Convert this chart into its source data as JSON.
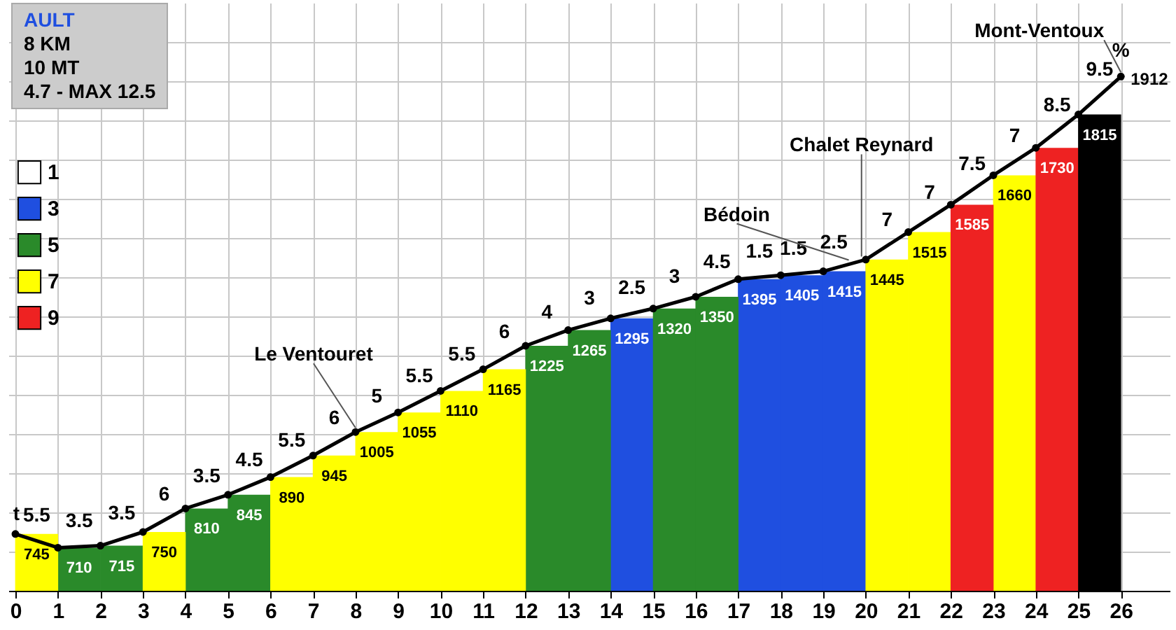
{
  "chart_data": {
    "type": "bar",
    "xlim": [
      0,
      27
    ],
    "xticks": [
      0,
      1,
      2,
      3,
      4,
      5,
      6,
      7,
      8,
      9,
      10,
      11,
      12,
      13,
      14,
      15,
      16,
      17,
      18,
      19,
      20,
      21,
      22,
      23,
      24,
      25,
      26
    ],
    "ylim": [
      600,
      2100
    ],
    "yticks": [
      {
        "value": 700,
        "label": null
      },
      {
        "value": 800,
        "label": null
      },
      {
        "value": 900,
        "label": null
      },
      {
        "value": 1000,
        "label": null
      },
      {
        "value": 1100,
        "label": null
      },
      {
        "value": 1200,
        "label": null
      },
      {
        "value": 1300,
        "label": null
      },
      {
        "value": 1400,
        "label": null
      },
      {
        "value": 1500,
        "label": null
      },
      {
        "value": 1600,
        "label": null
      },
      {
        "value": 1700,
        "label": null
      },
      {
        "value": 1800,
        "label": null
      },
      {
        "value": 1900,
        "label": null
      },
      {
        "value": 2000,
        "label": null
      }
    ],
    "tick_labels": "x",
    "grid": true,
    "legend": "top left",
    "marker": "circle",
    "line_style": "solid",
    "series": [
      {
        "name": "1",
        "color": "#ffffff"
      },
      {
        "name": "3",
        "color": "#1f4fe0",
        "x": [
          14.5,
          17.5,
          18.5,
          19.5
        ],
        "values": [
          1295,
          1395,
          1405,
          1415
        ],
        "value_labels": [
          "1295",
          "1395",
          "1405",
          "1415"
        ]
      },
      {
        "name": "5",
        "color": "#2a8a2a",
        "x": [
          1.5,
          2.5,
          4.5,
          5.5,
          12.5,
          13.5,
          15.5,
          16.5
        ],
        "values": [
          710,
          715,
          810,
          845,
          1225,
          1265,
          1320,
          1350
        ],
        "value_labels": [
          "710",
          "715",
          "810",
          "845",
          "1225",
          "1265",
          "1320",
          "1350"
        ]
      },
      {
        "name": "7",
        "color": "#ffff00",
        "x": [
          0.5,
          3.5,
          6.5,
          7.5,
          8.5,
          9.5,
          10.5,
          11.5,
          20.5,
          21.5,
          23.5
        ],
        "values": [
          745,
          750,
          890,
          945,
          1005,
          1055,
          1110,
          1165,
          1445,
          1515,
          1660
        ],
        "value_labels": [
          "745",
          "750",
          "890",
          "945",
          "1005",
          "1055",
          "1110",
          "1165",
          "1445",
          "1515",
          "1660"
        ]
      },
      {
        "name": "9",
        "color": "#ee2222",
        "x": [
          22.5,
          24.5
        ],
        "values": [
          1585,
          1730
        ],
        "value_labels": [
          "1585",
          "1730"
        ]
      },
      {
        "color": "#000000",
        "x": [
          25.5
        ],
        "values": [
          1815
        ],
        "value_labels": [
          "1815"
        ]
      },
      {
        "type": "line",
        "color": "#000000",
        "x": [
          0,
          1,
          2,
          3,
          4,
          5,
          6,
          7,
          8,
          9,
          10,
          11,
          12,
          13,
          14,
          15,
          16,
          17,
          18,
          19,
          20,
          21,
          22,
          23,
          24,
          25,
          26
        ],
        "values": [
          745,
          710,
          715,
          750,
          810,
          845,
          890,
          945,
          1005,
          1055,
          1110,
          1165,
          1225,
          1265,
          1295,
          1320,
          1350,
          1395,
          1405,
          1415,
          1445,
          1515,
          1585,
          1660,
          1730,
          1815,
          1912
        ],
        "value_labels": [
          null,
          null,
          null,
          null,
          null,
          null,
          null,
          null,
          null,
          null,
          null,
          null,
          null,
          null,
          null,
          null,
          null,
          null,
          null,
          null,
          null,
          null,
          null,
          null,
          null,
          null,
          "1912"
        ]
      }
    ],
    "annotations": [
      "AULT",
      "8 KM",
      "10 MT",
      "4.7 - MAX 12.5",
      {
        "text": "5.5",
        "x": 0.5,
        "y": 727.5
      },
      {
        "text": "3.5",
        "x": 1.5,
        "y": 712.5
      },
      {
        "text": "3.5",
        "x": 2.5,
        "y": 732.5
      },
      {
        "text": "6",
        "x": 3.5,
        "y": 780
      },
      {
        "text": "3.5",
        "x": 4.5,
        "y": 827.5
      },
      {
        "text": "4.5",
        "x": 5.5,
        "y": 867.5
      },
      {
        "text": "5.5",
        "x": 6.5,
        "y": 917.5
      },
      {
        "text": "6",
        "x": 7.5,
        "y": 975
      },
      {
        "text": "5",
        "x": 8.5,
        "y": 1030
      },
      {
        "text": "5.5",
        "x": 9.5,
        "y": 1082.5
      },
      {
        "text": "5.5",
        "x": 10.5,
        "y": 1137.5
      },
      {
        "text": "6",
        "x": 11.5,
        "y": 1195
      },
      {
        "text": "4",
        "x": 12.5,
        "y": 1245
      },
      {
        "text": "3",
        "x": 13.5,
        "y": 1280
      },
      {
        "text": "2.5",
        "x": 14.5,
        "y": 1307.5
      },
      {
        "text": "3",
        "x": 15.5,
        "y": 1335
      },
      {
        "text": "4.5",
        "x": 16.5,
        "y": 1372.5
      },
      {
        "text": "1.5",
        "x": 17.5,
        "y": 1400
      },
      {
        "text": "1.5",
        "x": 18.3,
        "y": 1408
      },
      {
        "text": "2.5",
        "x": 19.25,
        "y": 1422.5
      },
      {
        "text": "7",
        "x": 20.5,
        "y": 1480
      },
      {
        "text": "7",
        "x": 21.5,
        "y": 1550
      },
      {
        "text": "7.5",
        "x": 22.5,
        "y": 1622.5
      },
      {
        "text": "7",
        "x": 23.5,
        "y": 1695
      },
      {
        "text": "8.5",
        "x": 24.5,
        "y": 1772.5
      },
      {
        "text": "9.5",
        "x": 25.5,
        "y": 1863.5
      },
      {
        "text": "Le Ventouret",
        "x": 8,
        "y": 1005
      },
      {
        "text": "Bédoin",
        "x": 19.6,
        "y": 1433
      },
      {
        "text": "Chalet Reynard",
        "x": 19.9,
        "y": 1442
      },
      {
        "text": "Mont-Ventoux",
        "x": 26,
        "y": 1912
      },
      {
        "text": "%",
        "x": 26,
        "y": 1912
      },
      {
        "text": "t",
        "x": 0,
        "y": 745
      }
    ]
  }
}
